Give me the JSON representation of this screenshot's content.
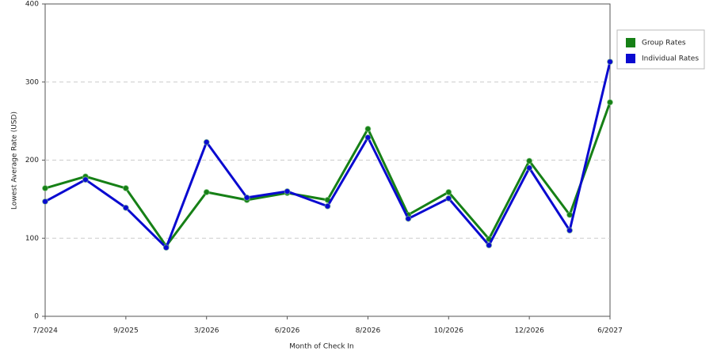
{
  "chart_data": {
    "type": "line",
    "x_label": "Month of Check In",
    "y_label": "Lowest Average Rate (USD)",
    "categories": [
      "7/2024",
      null,
      "9/2025",
      null,
      "3/2026",
      null,
      "6/2026",
      null,
      "8/2026",
      null,
      "10/2026",
      null,
      "12/2026",
      null,
      "6/2027"
    ],
    "series": [
      {
        "name": "Group Rates",
        "color": "#168016",
        "values": [
          164,
          179,
          164,
          90,
          159,
          149,
          158,
          149,
          240,
          130,
          159,
          99,
          199,
          130,
          274
        ]
      },
      {
        "name": "Individual Rates",
        "color": "#0a0ad0",
        "values": [
          147,
          175,
          139,
          88,
          223,
          152,
          160,
          141,
          229,
          125,
          151,
          91,
          190,
          110,
          326
        ]
      }
    ],
    "ylim": [
      0,
      400
    ],
    "yticks": [
      0,
      100,
      200,
      300,
      400
    ],
    "grid": true,
    "legend": "right"
  }
}
